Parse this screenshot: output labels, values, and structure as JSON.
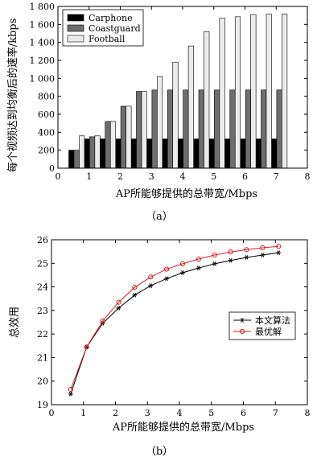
{
  "chart_data": [
    {
      "type": "bar",
      "caption": "（a）",
      "xlabel": "AP所能够提供的总带宽/Mbps",
      "ylabel": "每个视频达到均衡后的速率/kbps",
      "xlim": [
        0,
        8
      ],
      "ylim": [
        0,
        1800
      ],
      "x_ticks": [
        "0",
        "1",
        "2",
        "3",
        "4",
        "5",
        "6",
        "7",
        "8"
      ],
      "y_ticks": [
        "0",
        "200",
        "400",
        "600",
        "800",
        "1 000",
        "1 200",
        "1 400",
        "1 600",
        "1 800"
      ],
      "x": [
        0.6,
        1.1,
        1.6,
        2.1,
        2.6,
        3.1,
        3.6,
        4.1,
        4.6,
        5.1,
        5.6,
        6.1,
        6.6,
        7.1
      ],
      "legend_position": "top-left",
      "series": [
        {
          "name": "Carphone",
          "color": "#000000",
          "values": [
            200,
            325,
            325,
            325,
            325,
            325,
            325,
            325,
            325,
            325,
            325,
            325,
            325,
            325
          ]
        },
        {
          "name": "Coastguard",
          "color": "#6e6e6e",
          "values": [
            200,
            350,
            520,
            690,
            855,
            870,
            870,
            870,
            870,
            870,
            870,
            870,
            870,
            870
          ]
        },
        {
          "name": "Football",
          "color": "#ececec",
          "values": [
            360,
            360,
            520,
            690,
            855,
            1020,
            1180,
            1360,
            1520,
            1670,
            1685,
            1710,
            1715,
            1715
          ]
        }
      ]
    },
    {
      "type": "line",
      "caption": "（b）",
      "xlabel": "AP所能够提供的总带宽/Mbps",
      "ylabel": "总效用",
      "xlim": [
        0,
        8
      ],
      "ylim": [
        19,
        26
      ],
      "x_ticks": [
        "0",
        "1",
        "2",
        "3",
        "4",
        "5",
        "6",
        "7",
        "8"
      ],
      "y_ticks": [
        "19",
        "20",
        "21",
        "22",
        "23",
        "24",
        "25",
        "26"
      ],
      "x": [
        0.6,
        1.1,
        1.6,
        2.1,
        2.6,
        3.1,
        3.6,
        4.1,
        4.6,
        5.1,
        5.6,
        6.1,
        6.6,
        7.1
      ],
      "legend_position": "center-right",
      "series": [
        {
          "name": "本文算法",
          "color": "#000000",
          "marker": "star",
          "values": [
            19.45,
            21.45,
            22.45,
            23.1,
            23.65,
            24.05,
            24.35,
            24.6,
            24.8,
            24.98,
            25.12,
            25.25,
            25.35,
            25.45
          ]
        },
        {
          "name": "最优解",
          "color": "#d62020",
          "marker": "circle",
          "values": [
            19.65,
            21.45,
            22.55,
            23.35,
            23.98,
            24.42,
            24.75,
            24.98,
            25.18,
            25.35,
            25.48,
            25.58,
            25.66,
            25.72
          ]
        }
      ]
    }
  ]
}
